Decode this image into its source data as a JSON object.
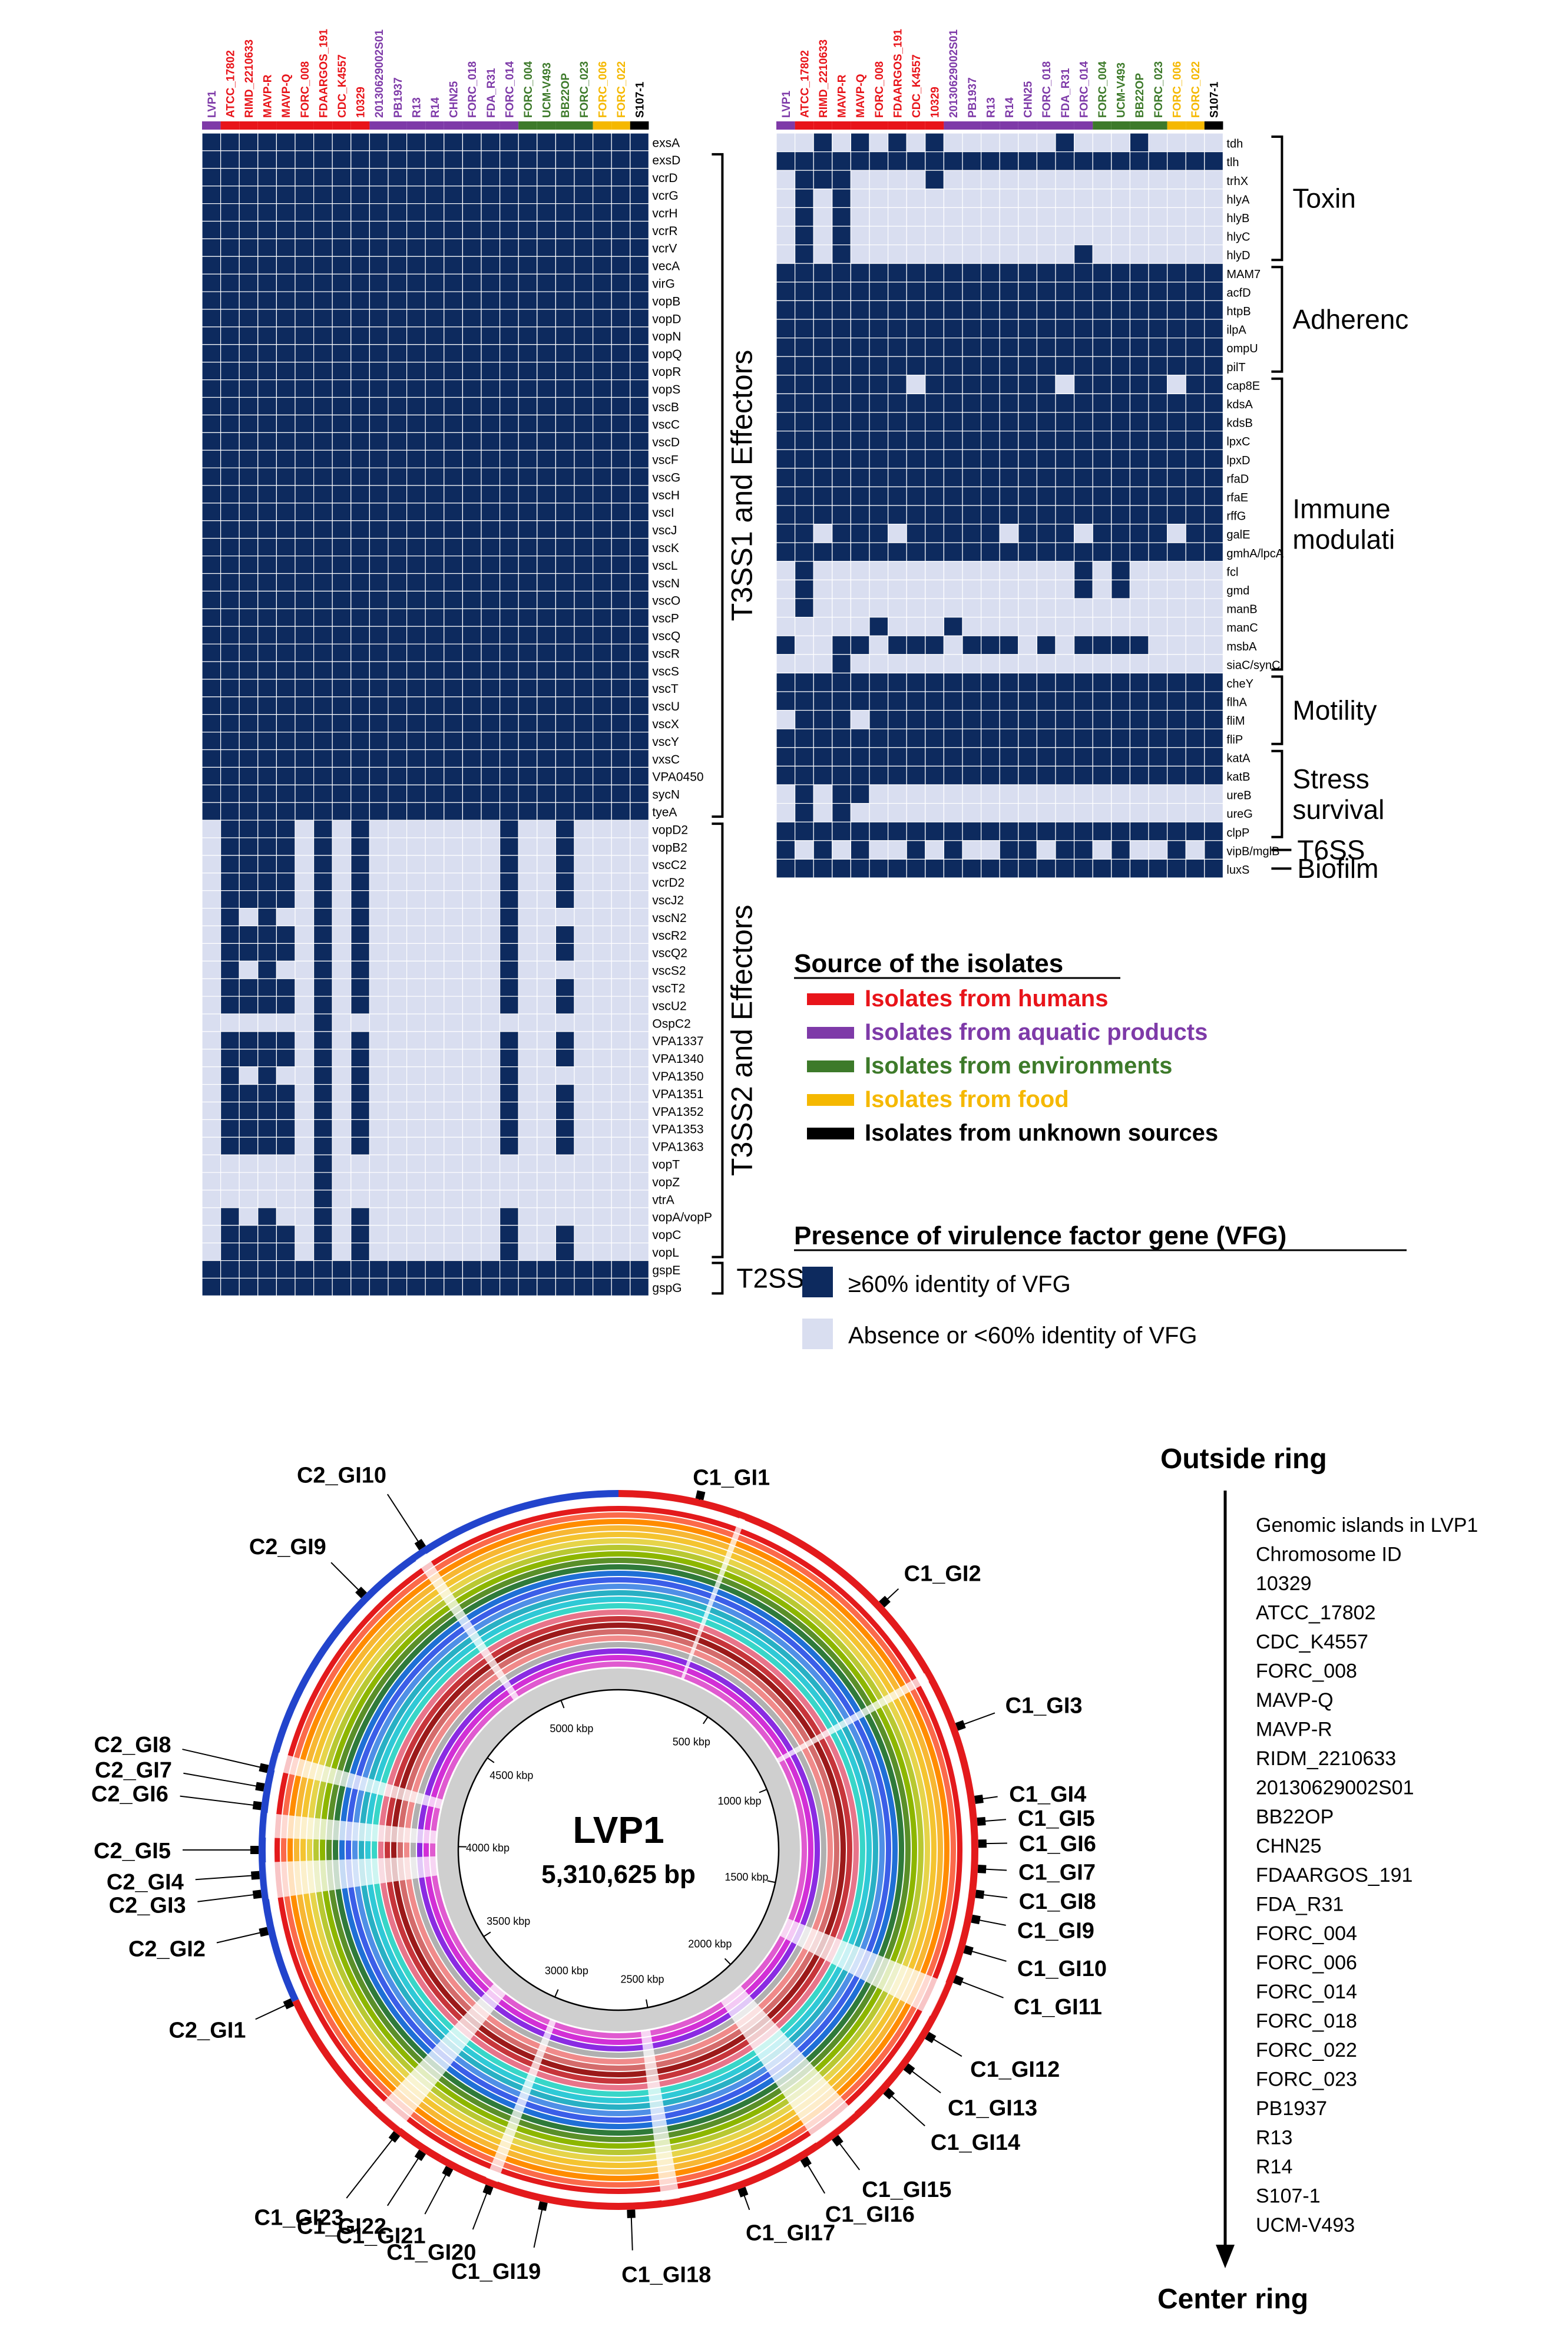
{
  "colors": {
    "present": "#0d2a5e",
    "absent": "#d9def0",
    "humans": "#e8141a",
    "aquatic": "#7e3aa8",
    "environments": "#3d7a2a",
    "food": "#f5b800",
    "unknown": "#000000"
  },
  "isolates": [
    {
      "name": "LVP1",
      "source": "aquatic"
    },
    {
      "name": "ATCC_17802",
      "source": "humans"
    },
    {
      "name": "RIMD_2210633",
      "source": "humans"
    },
    {
      "name": "MAVP-R",
      "source": "humans"
    },
    {
      "name": "MAVP-Q",
      "source": "humans"
    },
    {
      "name": "FORC_008",
      "source": "humans"
    },
    {
      "name": "FDAARGOS_191",
      "source": "humans"
    },
    {
      "name": "CDC_K4557",
      "source": "humans"
    },
    {
      "name": "10329",
      "source": "humans"
    },
    {
      "name": "20130629002S01",
      "source": "aquatic"
    },
    {
      "name": "PB1937",
      "source": "aquatic"
    },
    {
      "name": "R13",
      "source": "aquatic"
    },
    {
      "name": "R14",
      "source": "aquatic"
    },
    {
      "name": "CHN25",
      "source": "aquatic"
    },
    {
      "name": "FORC_018",
      "source": "aquatic"
    },
    {
      "name": "FDA_R31",
      "source": "aquatic"
    },
    {
      "name": "FORC_014",
      "source": "aquatic"
    },
    {
      "name": "FORC_004",
      "source": "environments"
    },
    {
      "name": "UCM-V493",
      "source": "environments"
    },
    {
      "name": "BB22OP",
      "source": "environments"
    },
    {
      "name": "FORC_023",
      "source": "environments"
    },
    {
      "name": "FORC_006",
      "source": "food"
    },
    {
      "name": "FORC_022",
      "source": "food"
    },
    {
      "name": "S107-1",
      "source": "unknown"
    }
  ],
  "left_heatmap": {
    "genes": [
      "exsA",
      "exsD",
      "vcrD",
      "vcrG",
      "vcrH",
      "vcrR",
      "vcrV",
      "vecA",
      "virG",
      "vopB",
      "vopD",
      "vopN",
      "vopQ",
      "vopR",
      "vopS",
      "vscB",
      "vscC",
      "vscD",
      "vscF",
      "vscG",
      "vscH",
      "vscI",
      "vscJ",
      "vscK",
      "vscL",
      "vscN",
      "vscO",
      "vscP",
      "vscQ",
      "vscR",
      "vscS",
      "vscT",
      "vscU",
      "vscX",
      "vscY",
      "vxsC",
      "VPA0450",
      "sycN",
      "tyeA",
      "vopD2",
      "vopB2",
      "vscC2",
      "vcrD2",
      "vscJ2",
      "vscN2",
      "vscR2",
      "vscQ2",
      "vscS2",
      "vscT2",
      "vscU2",
      "OspC2",
      "VPA1337",
      "VPA1340",
      "VPA1350",
      "VPA1351",
      "VPA1352",
      "VPA1353",
      "VPA1363",
      "vopT",
      "vopZ",
      "vtrA",
      "vopA/vopP",
      "vopC",
      "vopL",
      "gspE",
      "gspG"
    ],
    "groups": [
      {
        "label": "T3SS1 and Effectors",
        "from": 1,
        "to": 38
      },
      {
        "label": "T3SS2 and Effectors",
        "from": 39,
        "to": 63
      },
      {
        "label": "T2SS",
        "from": 64,
        "to": 65
      }
    ]
  },
  "right_heatmap": {
    "genes": [
      "tdh",
      "tlh",
      "trhX",
      "hlyA",
      "hlyB",
      "hlyC",
      "hlyD",
      "MAM7",
      "acfD",
      "htpB",
      "ilpA",
      "ompU",
      "pilT",
      "cap8E",
      "kdsA",
      "kdsB",
      "lpxC",
      "lpxD",
      "rfaD",
      "rfaE",
      "rffG",
      "galE",
      "gmhA/lpcA",
      "fcl",
      "gmd",
      "manB",
      "manC",
      "msbA",
      "siaC/synC",
      "cheY",
      "flhA",
      "fliM",
      "fliP",
      "katA",
      "katB",
      "ureB",
      "ureG",
      "clpP",
      "vipB/mglB",
      "luxS"
    ],
    "groups": [
      {
        "label": "Toxin",
        "from": 0,
        "to": 6
      },
      {
        "label": "Adherenc",
        "from": 7,
        "to": 12
      },
      {
        "label": "Immune modulati",
        "from": 13,
        "to": 28
      },
      {
        "label": "Motility",
        "from": 29,
        "to": 32
      },
      {
        "label": "Stress survival",
        "from": 33,
        "to": 37
      },
      {
        "label": "T6SS",
        "from": 38,
        "to": 38
      },
      {
        "label": "Biofilm",
        "from": 39,
        "to": 39
      }
    ]
  },
  "legend": {
    "source_title": "Source of the isolates",
    "sources": [
      {
        "key": "humans",
        "label": "Isolates from humans"
      },
      {
        "key": "aquatic",
        "label": "Isolates from aquatic products"
      },
      {
        "key": "environments",
        "label": "Isolates from environments"
      },
      {
        "key": "food",
        "label": "Isolates from food"
      },
      {
        "key": "unknown",
        "label": "Isolates from unknown sources"
      }
    ],
    "vfg_title": "Presence of virulence factor gene (VFG)",
    "present_label": "≥60% identity of VFG",
    "absent_label": "Absence or <60% identity of VFG"
  },
  "circle": {
    "name": "LVP1",
    "size": "5,310,625 bp",
    "ticks": [
      "500 kbp",
      "1000 kbp",
      "1500 kbp",
      "2000 kbp",
      "2500 kbp",
      "3000 kbp",
      "3500 kbp",
      "4000 kbp",
      "4500 kbp",
      "5000 kbp"
    ],
    "genomic_islands": [
      {
        "label": "C1_GI1"
      },
      {
        "label": "C1_GI2"
      },
      {
        "label": "C1_GI3"
      },
      {
        "label": "C1_GI4"
      },
      {
        "label": "C1_GI5"
      },
      {
        "label": "C1_GI6"
      },
      {
        "label": "C1_GI7"
      },
      {
        "label": "C1_GI8"
      },
      {
        "label": "C1_GI9"
      },
      {
        "label": "C1_GI10"
      },
      {
        "label": "C1_GI11"
      },
      {
        "label": "C1_GI12"
      },
      {
        "label": "C1_GI13"
      },
      {
        "label": "C1_GI14"
      },
      {
        "label": "C1_GI15"
      },
      {
        "label": "C1_GI16"
      },
      {
        "label": "C1_GI17"
      },
      {
        "label": "C1_GI18"
      },
      {
        "label": "C1_GI19"
      },
      {
        "label": "C1_GI20"
      },
      {
        "label": "C1_GI21"
      },
      {
        "label": "C1_GI22"
      },
      {
        "label": "C1_GI23"
      },
      {
        "label": "C2_GI1"
      },
      {
        "label": "C2_GI2"
      },
      {
        "label": "C2_GI3"
      },
      {
        "label": "C2_GI4"
      },
      {
        "label": "C2_GI5"
      },
      {
        "label": "C2_GI6"
      },
      {
        "label": "C2_GI7"
      },
      {
        "label": "C2_GI8"
      },
      {
        "label": "C2_GI9"
      },
      {
        "label": "C2_GI10"
      }
    ]
  },
  "rings": {
    "outside_label": "Outside ring",
    "center_label": "Center ring",
    "items": [
      "Genomic islands in LVP1",
      "Chromosome ID",
      "10329",
      "ATCC_17802",
      "CDC_K4557",
      "FORC_008",
      "MAVP-Q",
      "MAVP-R",
      "RIDM_2210633",
      "20130629002S01",
      "BB22OP",
      "CHN25",
      "FDAARGOS_191",
      "FDA_R31",
      "FORC_004",
      "FORC_006",
      "FORC_014",
      "FORC_018",
      "FORC_022",
      "FORC_023",
      "PB1937",
      "R13",
      "R14",
      "S107-1",
      "UCM-V493"
    ]
  }
}
